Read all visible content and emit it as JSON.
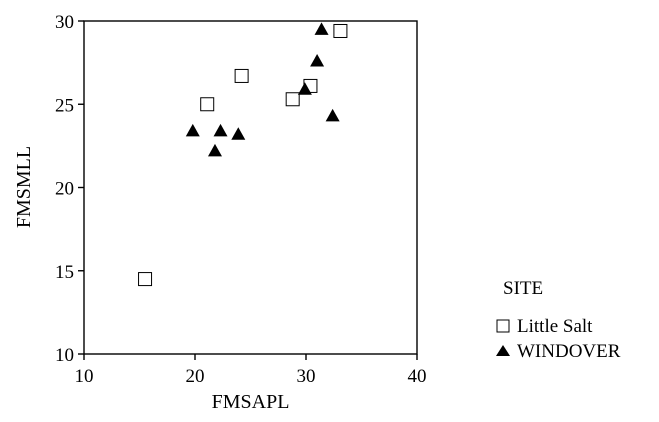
{
  "chart_data": {
    "type": "scatter",
    "xlabel": "FMSAPL",
    "ylabel": "FMSMLL",
    "xlim": [
      10,
      40
    ],
    "ylim": [
      10,
      30
    ],
    "xticks": [
      "10",
      "20",
      "30",
      "40"
    ],
    "yticks": [
      "10",
      "15",
      "20",
      "25",
      "30"
    ],
    "grid": false,
    "legend": {
      "title": "SITE",
      "placement": "right"
    },
    "series": [
      {
        "name": "Little Salt",
        "marker": "open-square",
        "points": [
          {
            "x": 15.5,
            "y": 14.5
          },
          {
            "x": 21.1,
            "y": 25.0
          },
          {
            "x": 24.2,
            "y": 26.7
          },
          {
            "x": 28.8,
            "y": 25.3
          },
          {
            "x": 30.4,
            "y": 26.1
          },
          {
            "x": 33.1,
            "y": 29.4
          }
        ]
      },
      {
        "name": "WINDOVER",
        "marker": "filled-triangle",
        "points": [
          {
            "x": 19.8,
            "y": 23.4
          },
          {
            "x": 21.8,
            "y": 22.2
          },
          {
            "x": 22.3,
            "y": 23.4
          },
          {
            "x": 23.9,
            "y": 23.2
          },
          {
            "x": 29.9,
            "y": 25.9
          },
          {
            "x": 31.0,
            "y": 27.6
          },
          {
            "x": 31.4,
            "y": 29.5
          },
          {
            "x": 32.4,
            "y": 24.3
          }
        ]
      }
    ]
  }
}
